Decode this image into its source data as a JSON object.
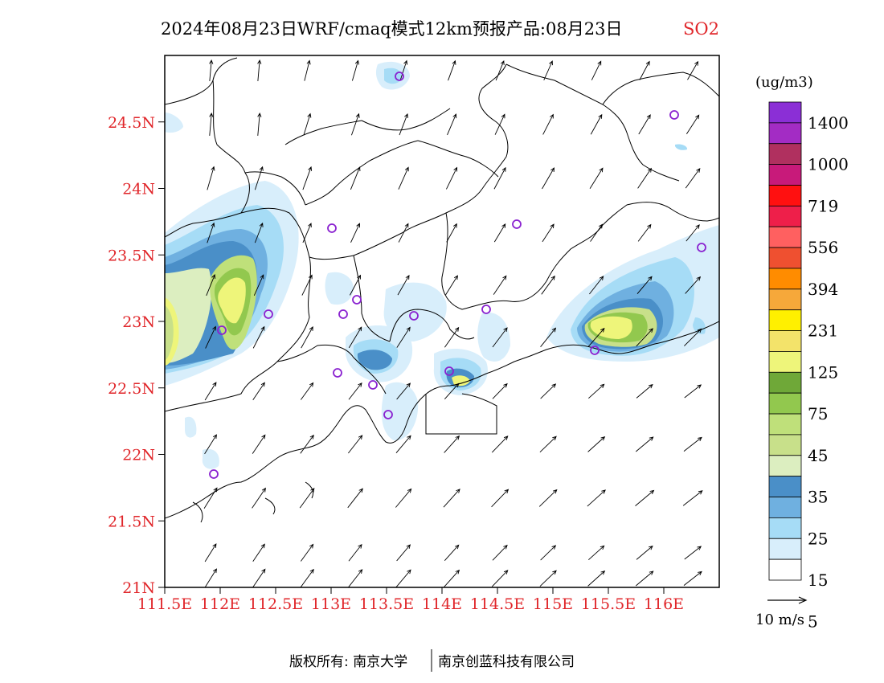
{
  "title": {
    "main": "2024年08月23日WRF/cmaq模式12km预报产品:08月23日",
    "species": "SO2"
  },
  "axes": {
    "lat_labels": [
      "24.5N",
      "24N",
      "23.5N",
      "23N",
      "22.5N",
      "22N",
      "21.5N",
      "21N"
    ],
    "lat_values": [
      24.5,
      24.0,
      23.5,
      23.0,
      22.5,
      22.0,
      21.5,
      21.0
    ],
    "lon_labels": [
      "111.5E",
      "112E",
      "112.5E",
      "113E",
      "113.5E",
      "114E",
      "114.5E",
      "115E",
      "115.5E",
      "116E"
    ],
    "lon_values": [
      111.5,
      112.0,
      112.5,
      113.0,
      113.5,
      114.0,
      114.5,
      115.0,
      115.5,
      116.0
    ],
    "lat_range": [
      21.0,
      25.0
    ],
    "lon_range": [
      111.5,
      116.5
    ]
  },
  "colorbar": {
    "unit": "(ug/m3)",
    "labels": [
      "1400",
      "1000",
      "719",
      "556",
      "394",
      "231",
      "125",
      "75",
      "45",
      "35",
      "25",
      "15",
      "5"
    ],
    "colors_top_to_bottom": [
      "#8b2fd6",
      "#a32cc4",
      "#b0305f",
      "#c81a7a",
      "#ff1010",
      "#ee1f4a",
      "#ff6060",
      "#ef5030",
      "#ff8c00",
      "#f6a83a",
      "#fff000",
      "#f3e36a",
      "#eef57a",
      "#6fa838",
      "#92c84e",
      "#bfe07a",
      "#c8e08a",
      "#dceec0",
      "#4a8fc8",
      "#6fb0e0",
      "#a6dcf6",
      "#d8eefb",
      "#ffffff"
    ]
  },
  "wind": {
    "reference_label": "10 m/s"
  },
  "stations": {
    "marker_color": "#8a22d0"
  },
  "footer": {
    "left": "版权所有: 南京大学",
    "right": "南京创蓝科技有限公司"
  },
  "colors": {
    "axis_label": "#e0262a",
    "species_label": "#e0262a"
  }
}
